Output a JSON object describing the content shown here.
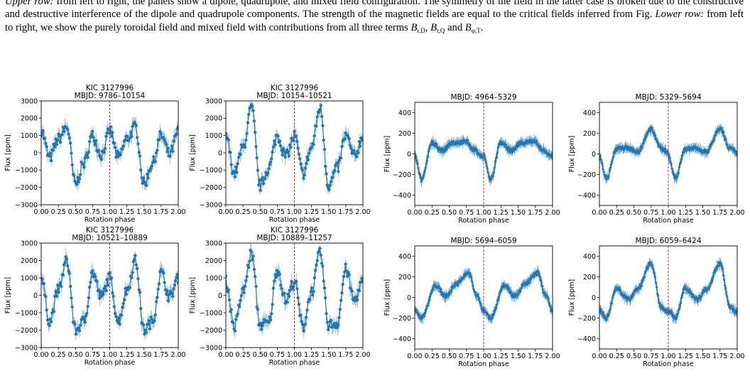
{
  "caption": {
    "part1": "from left to right, the panels show a dipole, quadrupole, and mixed field configuration. The symmetry of the field in the latter case is broken due to the constructive and destructive interference of the dipole and quadrupole components. The strength of the magnetic fields are equal to the critical fields inferred from Fig.",
    "upper_label": "Upper row:",
    "lower_label": "Lower row:",
    "part2": "from left to right, we show the purely toroidal field and mixed field with contributions from all three terms",
    "term1": "B",
    "term1_sub": "r,D",
    "term2": "B",
    "term2_sub": "r,Q",
    "and_word": "and",
    "term3": "B",
    "term3_sub": "φ,T",
    "end": "."
  },
  "chart_data": [
    {
      "type": "line",
      "title": "KIC 3127996",
      "subtitle": "MBJD: 9786–10154",
      "xlabel": "Rotation phase",
      "ylabel": "Flux [ppm]",
      "xlim": [
        0,
        2
      ],
      "ylim": [
        -3000,
        3000
      ],
      "xticks": [
        "0.00",
        "0.25",
        "0.50",
        "0.75",
        "1.00",
        "1.25",
        "1.50",
        "1.75",
        "2.00"
      ],
      "yticks": [
        "3000",
        "2000",
        "1000",
        "0",
        "−1000",
        "−2000",
        "−3000"
      ],
      "marker_x": 1.0,
      "color": "#1f77b4",
      "marker_color": "#d62728",
      "x": [
        0,
        0.125,
        0.25,
        0.375,
        0.5,
        0.625,
        0.75,
        0.875,
        1
      ],
      "y": [
        1300,
        -300,
        800,
        1500,
        -1800,
        -600,
        1000,
        -100,
        1200
      ]
    },
    {
      "type": "line",
      "title": "KIC 3127996",
      "subtitle": "MBJD: 10154–10521",
      "xlabel": "Rotation phase",
      "ylabel": "Flux [ppm]",
      "xlim": [
        0,
        2
      ],
      "ylim": [
        -3000,
        3000
      ],
      "xticks": [
        "0.00",
        "0.25",
        "0.50",
        "0.75",
        "1.00",
        "1.25",
        "1.50",
        "1.75",
        "2.00"
      ],
      "yticks": [
        "3000",
        "2000",
        "1000",
        "0",
        "−1000",
        "−2000",
        "−3000"
      ],
      "marker_x": 1.0,
      "color": "#1f77b4",
      "marker_color": "#d62728",
      "x": [
        0,
        0.125,
        0.25,
        0.375,
        0.5,
        0.625,
        0.75,
        0.875,
        1
      ],
      "y": [
        1000,
        -1200,
        300,
        2600,
        -1900,
        -900,
        1000,
        -200,
        900
      ]
    },
    {
      "type": "line",
      "title": "KIC 3127996",
      "subtitle": "MBJD: 10521–10889",
      "xlabel": "Rotation phase",
      "ylabel": "Flux [ppm]",
      "xlim": [
        0,
        2
      ],
      "ylim": [
        -3000,
        3000
      ],
      "xticks": [
        "0.00",
        "0.25",
        "0.50",
        "0.75",
        "1.00",
        "1.25",
        "1.50",
        "1.75",
        "2.00"
      ],
      "yticks": [
        "3000",
        "2000",
        "1000",
        "0",
        "−1000",
        "−2000",
        "−3000"
      ],
      "marker_x": 1.0,
      "color": "#1f77b4",
      "marker_color": "#d62728",
      "x": [
        0,
        0.125,
        0.25,
        0.375,
        0.5,
        0.625,
        0.75,
        0.875,
        1
      ],
      "y": [
        1000,
        -1500,
        300,
        2000,
        -2000,
        -1500,
        1300,
        -100,
        1000
      ]
    },
    {
      "type": "line",
      "title": "KIC 3127996",
      "subtitle": "MBJD: 10889–11257",
      "xlabel": "Rotation phase",
      "ylabel": "Flux [ppm]",
      "xlim": [
        0,
        2
      ],
      "ylim": [
        -3000,
        3000
      ],
      "xticks": [
        "0.00",
        "0.25",
        "0.50",
        "0.75",
        "1.00",
        "1.25",
        "1.50",
        "1.75",
        "2.00"
      ],
      "yticks": [
        "3000",
        "2000",
        "1000",
        "0",
        "−1000",
        "−2000",
        "−3000"
      ],
      "marker_x": 1.0,
      "color": "#1f77b4",
      "marker_color": "#d62728",
      "x": [
        0,
        0.125,
        0.25,
        0.375,
        0.5,
        0.625,
        0.75,
        0.875,
        1
      ],
      "y": [
        800,
        -1800,
        200,
        2400,
        -1700,
        -1600,
        1500,
        -300,
        800
      ]
    },
    {
      "type": "line",
      "title": "",
      "subtitle": "MBJD: 4964–5329",
      "xlabel": "Rotation phase",
      "ylabel": "Flux [ppm]",
      "xlim": [
        0,
        2
      ],
      "ylim": [
        -500,
        500
      ],
      "xticks": [
        "0.00",
        "0.25",
        "0.50",
        "0.75",
        "1.00",
        "1.25",
        "1.50",
        "1.75",
        "2.00"
      ],
      "yticks": [
        "400",
        "200",
        "0",
        "−200",
        "−400"
      ],
      "marker_x": 1.0,
      "color": "#1f77b4",
      "marker_color": "#d62728",
      "x": [
        0,
        0.1,
        0.25,
        0.4,
        0.55,
        0.75,
        0.85,
        1
      ],
      "y": [
        -20,
        -250,
        110,
        30,
        110,
        120,
        40,
        -30
      ]
    },
    {
      "type": "line",
      "title": "",
      "subtitle": "MBJD: 5329–5694",
      "xlabel": "Rotation phase",
      "ylabel": "Flux [ppm]",
      "xlim": [
        0,
        2
      ],
      "ylim": [
        -500,
        500
      ],
      "xticks": [
        "0.00",
        "0.25",
        "0.50",
        "0.75",
        "1.00",
        "1.25",
        "1.50",
        "1.75",
        "2.00"
      ],
      "yticks": [
        "400",
        "200",
        "0",
        "−200",
        "−400"
      ],
      "marker_x": 1.0,
      "color": "#1f77b4",
      "marker_color": "#d62728",
      "x": [
        0,
        0.1,
        0.25,
        0.4,
        0.55,
        0.75,
        0.9,
        1
      ],
      "y": [
        -20,
        -240,
        50,
        60,
        20,
        240,
        50,
        10
      ]
    },
    {
      "type": "line",
      "title": "",
      "subtitle": "MBJD: 5694–6059",
      "xlabel": "Rotation phase",
      "ylabel": "Flux [ppm]",
      "xlim": [
        0,
        2
      ],
      "ylim": [
        -500,
        500
      ],
      "xticks": [
        "0.00",
        "0.25",
        "0.50",
        "0.75",
        "1.00",
        "1.25",
        "1.50",
        "1.75",
        "2.00"
      ],
      "yticks": [
        "400",
        "200",
        "0",
        "−200",
        "−400"
      ],
      "marker_x": 1.0,
      "color": "#1f77b4",
      "marker_color": "#d62728",
      "x": [
        0,
        0.1,
        0.3,
        0.45,
        0.6,
        0.78,
        0.9,
        1
      ],
      "y": [
        -130,
        -200,
        120,
        10,
        130,
        240,
        20,
        -130
      ]
    },
    {
      "type": "line",
      "title": "",
      "subtitle": "MBJD: 6059–6424",
      "xlabel": "Rotation phase",
      "ylabel": "Flux [ppm]",
      "xlim": [
        0,
        2
      ],
      "ylim": [
        -500,
        500
      ],
      "xticks": [
        "0.00",
        "0.25",
        "0.50",
        "0.75",
        "1.00",
        "1.25",
        "1.50",
        "1.75",
        "2.00"
      ],
      "yticks": [
        "400",
        "200",
        "0",
        "−200",
        "−400"
      ],
      "marker_x": 1.0,
      "color": "#1f77b4",
      "marker_color": "#d62728",
      "x": [
        0,
        0.1,
        0.25,
        0.42,
        0.55,
        0.75,
        0.9,
        1
      ],
      "y": [
        -120,
        -200,
        90,
        -20,
        80,
        330,
        -100,
        -140
      ]
    }
  ]
}
